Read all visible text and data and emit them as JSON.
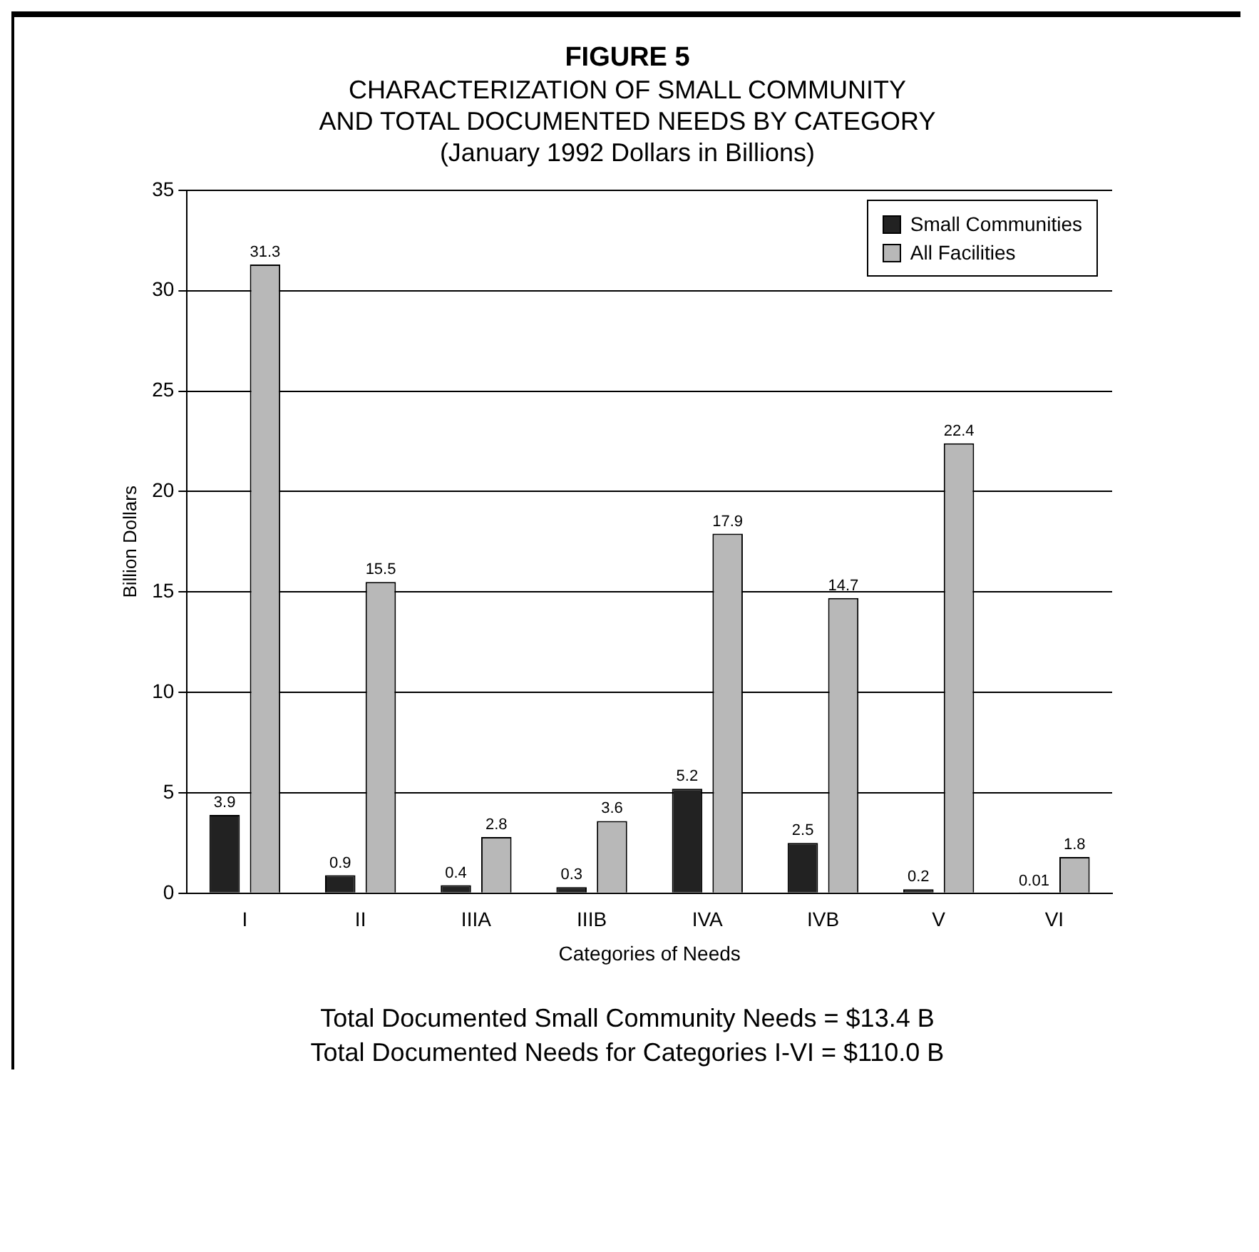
{
  "chart_data": {
    "type": "bar",
    "title": "FIGURE 5",
    "subtitle": "CHARACTERIZATION OF SMALL COMMUNITY\nAND TOTAL DOCUMENTED NEEDS BY CATEGORY\n(January 1992 Dollars in Billions)",
    "xlabel": "Categories of Needs",
    "ylabel": "Billion Dollars",
    "categories": [
      "I",
      "II",
      "IIIA",
      "IIIB",
      "IVA",
      "IVB",
      "V",
      "VI"
    ],
    "series": [
      {
        "name": "Small Communities",
        "color": "#222222",
        "values": [
          3.9,
          0.9,
          0.4,
          0.3,
          5.2,
          2.5,
          0.2,
          0.01
        ]
      },
      {
        "name": "All Facilities",
        "color": "#b8b8b8",
        "values": [
          31.3,
          15.5,
          2.8,
          3.6,
          17.9,
          14.7,
          22.4,
          1.8
        ]
      }
    ],
    "ylim": [
      0,
      35
    ],
    "yticks": [
      0,
      5,
      10,
      15,
      20,
      25,
      30,
      35
    ],
    "grid": "y",
    "legend": "top right",
    "data_labels": true,
    "annotations": [
      "Total Documented Small Community Needs = $13.4 B",
      "Total Documented Needs for Categories I-VI = $110.0 B"
    ]
  }
}
